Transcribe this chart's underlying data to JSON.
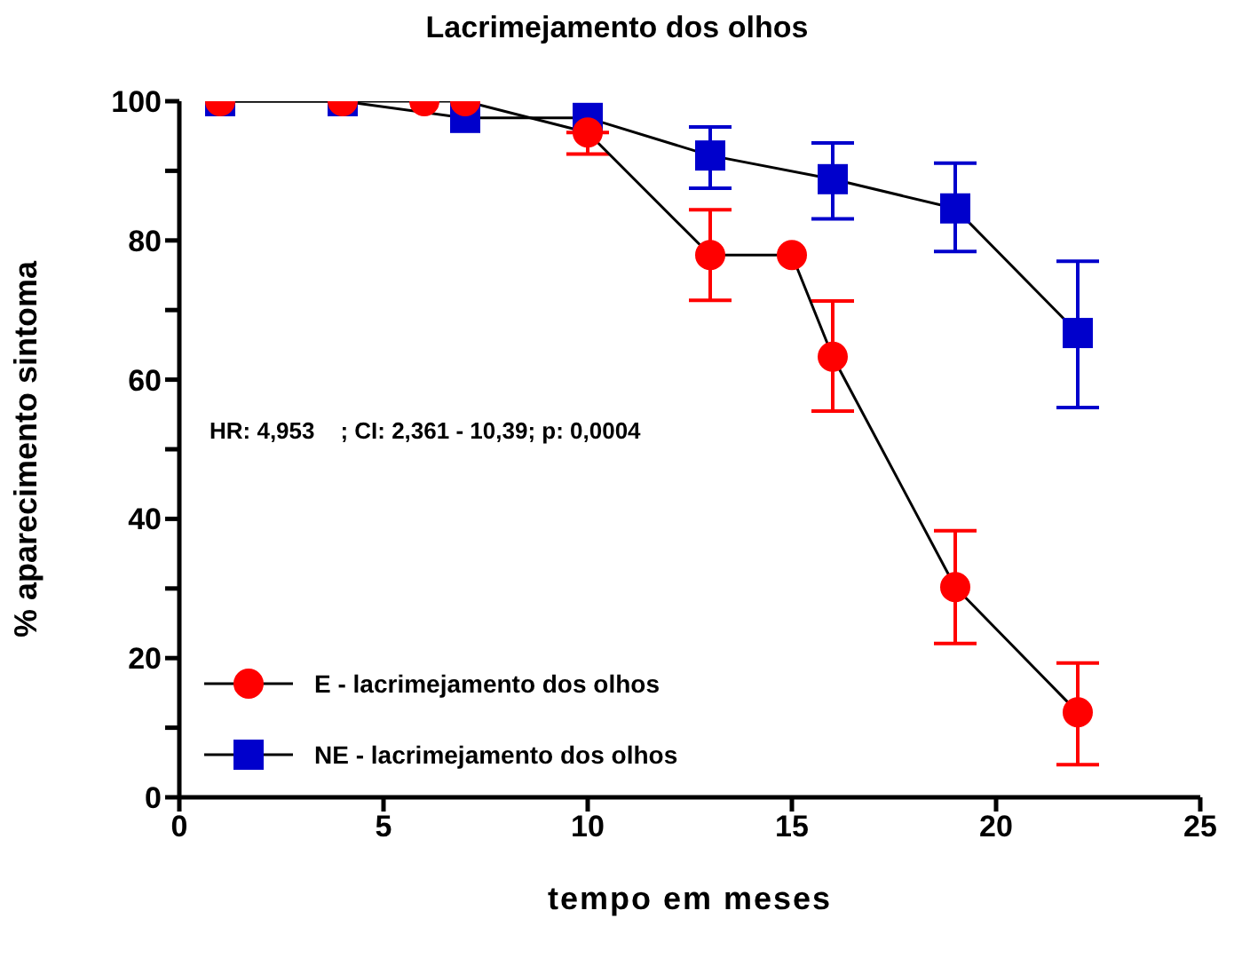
{
  "chart_data": {
    "type": "line",
    "title": "Lacrimejamento dos olhos",
    "xlabel": "tempo em meses",
    "ylabel": "% aparecimento sintoma",
    "annotations": [
      "HR: 4,953    ; CI: 2,361 - 10,39; p: 0,0004"
    ],
    "series": [
      {
        "name": "E - lacrimejamento dos olhos",
        "color": "#ff0000",
        "marker": "circle",
        "x": [
          1,
          4,
          6,
          7,
          10,
          13,
          15,
          16,
          19,
          22
        ],
        "values": [
          100,
          100,
          100,
          100,
          95.5,
          77.9,
          77.9,
          63.3,
          30.2,
          12.2
        ],
        "errors": [
          null,
          null,
          null,
          null,
          [
            92.4,
            95.5
          ],
          [
            71.4,
            84.4
          ],
          null,
          [
            55.5,
            71.3
          ],
          [
            22.1,
            38.3
          ],
          [
            4.7,
            19.3
          ]
        ]
      },
      {
        "name": "NE - lacrimejamento dos olhos",
        "color": "#0000cc",
        "marker": "square",
        "x": [
          1,
          4,
          7,
          10,
          13,
          16,
          19,
          22
        ],
        "values": [
          100,
          100,
          97.6,
          97.6,
          92.2,
          88.8,
          84.6,
          66.7
        ],
        "errors": [
          null,
          null,
          null,
          null,
          [
            87.5,
            96.3
          ],
          [
            83.1,
            94
          ],
          [
            78.4,
            91.1
          ],
          [
            56,
            77
          ]
        ]
      }
    ],
    "xlim": [
      0,
      25
    ],
    "xticks": [
      0,
      5,
      10,
      15,
      20,
      25
    ],
    "ylim": [
      0,
      100
    ],
    "yticks": [
      0,
      {
        "value": 10,
        "label": null
      },
      20,
      {
        "value": 30,
        "label": null
      },
      40,
      {
        "value": 50,
        "label": null
      },
      60,
      {
        "value": 70,
        "label": null
      },
      80,
      {
        "value": 90,
        "label": null
      },
      100
    ],
    "grid": false,
    "legend": "bottom left",
    "line_style": "solid"
  }
}
